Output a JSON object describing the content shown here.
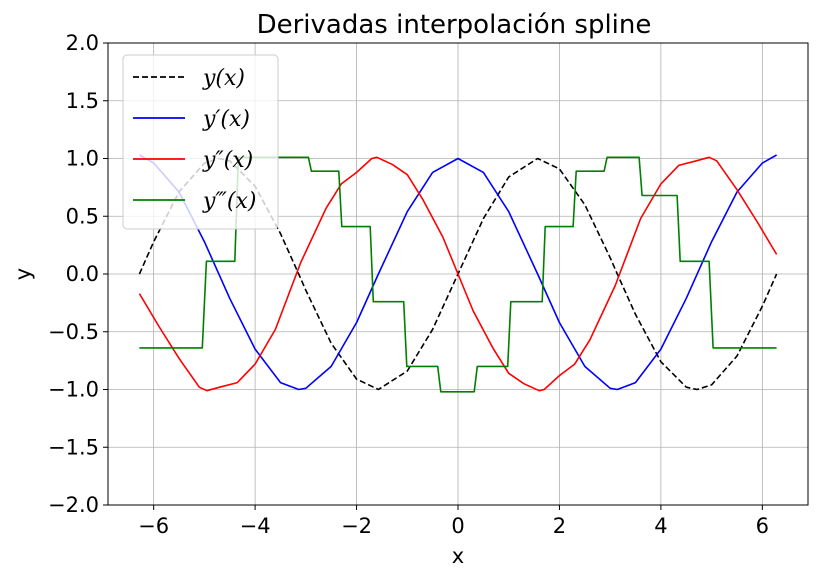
{
  "chart_data": {
    "type": "line",
    "title": "Derivadas interpolación spline",
    "xlabel": "x",
    "ylabel": "y",
    "xlim": [
      -6.9,
      6.9
    ],
    "ylim": [
      -2.0,
      2.0
    ],
    "xticks": [
      -6,
      -4,
      -2,
      0,
      2,
      4,
      6
    ],
    "xtick_labels": [
      "−6",
      "−4",
      "−2",
      "0",
      "2",
      "4",
      "6"
    ],
    "yticks": [
      -2.0,
      -1.5,
      -1.0,
      -0.5,
      0.0,
      0.5,
      1.0,
      1.5,
      2.0
    ],
    "ytick_labels": [
      "−2.0",
      "−1.5",
      "−1.0",
      "−0.5",
      "0.0",
      "0.5",
      "1.0",
      "1.5",
      "2.0"
    ],
    "grid": true,
    "legend_position": "top-left",
    "series": [
      {
        "name": "y(x)",
        "color": "#000000",
        "dash": "dashed",
        "x": [
          -6.28,
          -6.0,
          -5.5,
          -5.0,
          -4.71,
          -4.5,
          -4.0,
          -3.5,
          -3.14,
          -3.0,
          -2.5,
          -2.0,
          -1.57,
          -1.0,
          -0.5,
          0.0,
          0.5,
          1.0,
          1.57,
          2.0,
          2.5,
          3.0,
          3.14,
          3.5,
          4.0,
          4.5,
          4.71,
          5.0,
          5.5,
          6.0,
          6.28
        ],
        "y": [
          0.0,
          0.28,
          0.71,
          0.96,
          1.0,
          0.98,
          0.76,
          0.35,
          0.0,
          -0.14,
          -0.6,
          -0.91,
          -1.0,
          -0.84,
          -0.48,
          0.0,
          0.48,
          0.84,
          1.0,
          0.91,
          0.6,
          0.14,
          0.0,
          -0.35,
          -0.76,
          -0.98,
          -1.0,
          -0.96,
          -0.71,
          -0.28,
          0.0
        ]
      },
      {
        "name": "y′(x)",
        "color": "#0000ff",
        "dash": "solid",
        "x": [
          -6.28,
          -6.0,
          -5.5,
          -5.0,
          -4.5,
          -4.0,
          -3.5,
          -3.14,
          -3.0,
          -2.5,
          -2.0,
          -1.57,
          -1.0,
          -0.5,
          0.0,
          0.5,
          1.0,
          1.57,
          2.0,
          2.5,
          3.0,
          3.14,
          3.5,
          4.0,
          4.5,
          5.0,
          5.5,
          6.0,
          6.28
        ],
        "y": [
          1.03,
          0.96,
          0.71,
          0.28,
          -0.21,
          -0.65,
          -0.94,
          -1.0,
          -0.99,
          -0.8,
          -0.42,
          0.0,
          0.54,
          0.88,
          1.0,
          0.88,
          0.54,
          0.0,
          -0.42,
          -0.8,
          -0.99,
          -1.0,
          -0.94,
          -0.65,
          -0.21,
          0.28,
          0.71,
          0.96,
          1.03
        ]
      },
      {
        "name": "y″(x)",
        "color": "#ff0000",
        "dash": "solid",
        "x": [
          -6.28,
          -5.9,
          -5.5,
          -5.1,
          -4.95,
          -4.7,
          -4.35,
          -4.0,
          -3.6,
          -3.1,
          -2.6,
          -2.3,
          -2.0,
          -1.7,
          -1.6,
          -1.3,
          -1.0,
          -0.7,
          -0.3,
          0.0,
          0.3,
          0.7,
          1.0,
          1.3,
          1.6,
          1.7,
          2.0,
          2.3,
          2.6,
          3.1,
          3.6,
          4.0,
          4.35,
          4.7,
          4.95,
          5.1,
          5.5,
          5.9,
          6.28
        ],
        "y": [
          -0.17,
          -0.45,
          -0.73,
          -0.98,
          -1.01,
          -0.98,
          -0.94,
          -0.78,
          -0.48,
          0.1,
          0.57,
          0.78,
          0.88,
          1.0,
          1.01,
          0.95,
          0.86,
          0.65,
          0.32,
          0.0,
          -0.32,
          -0.65,
          -0.86,
          -0.95,
          -1.01,
          -1.0,
          -0.88,
          -0.78,
          -0.57,
          -0.1,
          0.48,
          0.78,
          0.94,
          0.98,
          1.01,
          0.98,
          0.73,
          0.45,
          0.17
        ]
      },
      {
        "name": "y‴(x)",
        "color": "#008000",
        "dash": "solid",
        "x": [
          -6.28,
          -5.04,
          -4.96,
          -4.4,
          -4.33,
          -3.64,
          -3.58,
          -2.95,
          -2.89,
          -2.35,
          -2.29,
          -1.73,
          -1.67,
          -1.07,
          -1.01,
          -0.4,
          -0.34,
          0.32,
          0.38,
          0.98,
          1.04,
          1.66,
          1.72,
          2.27,
          2.33,
          2.88,
          2.94,
          3.57,
          3.63,
          4.32,
          4.38,
          4.95,
          5.03,
          6.28
        ],
        "y": [
          -0.64,
          -0.64,
          0.11,
          0.11,
          1.01,
          1.01,
          1.01,
          1.01,
          0.89,
          0.89,
          0.41,
          0.41,
          -0.24,
          -0.24,
          -0.8,
          -0.8,
          -1.02,
          -1.02,
          -0.8,
          -0.8,
          -0.24,
          -0.24,
          0.41,
          0.41,
          0.89,
          0.89,
          1.01,
          1.01,
          0.68,
          0.68,
          0.11,
          0.11,
          -0.64,
          -0.64
        ]
      }
    ]
  }
}
